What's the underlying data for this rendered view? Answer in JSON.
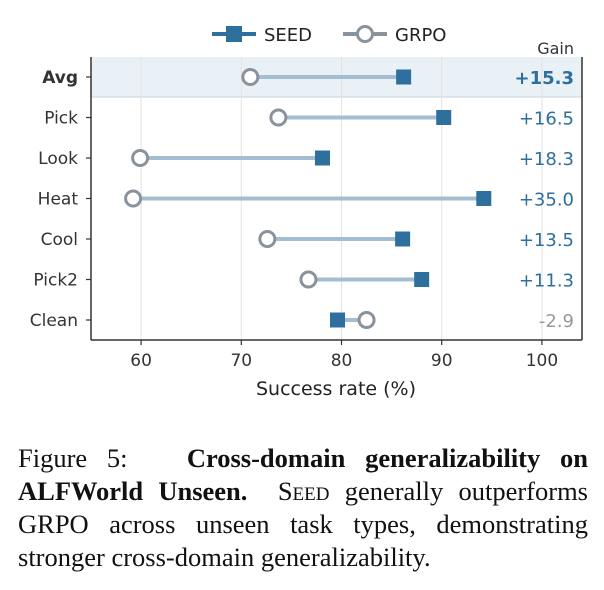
{
  "chart_data": {
    "type": "dumbbell",
    "title": "",
    "xlabel": "Success rate (%)",
    "xlim": [
      55,
      104
    ],
    "xticks": [
      60,
      70,
      80,
      90,
      100
    ],
    "categories": [
      "Avg",
      "Pick",
      "Look",
      "Heat",
      "Cool",
      "Pick2",
      "Clean"
    ],
    "highlight_category": "Avg",
    "series": [
      {
        "name": "SEED",
        "values": [
          86.2,
          90.2,
          78.1,
          94.2,
          86.1,
          88.0,
          79.6
        ],
        "color": "#2e6f9e",
        "marker": "square"
      },
      {
        "name": "GRPO",
        "values": [
          70.9,
          73.7,
          59.9,
          59.2,
          72.6,
          76.7,
          82.5
        ],
        "color": "#8a939c",
        "marker": "hollow-circle"
      }
    ],
    "gain_header": "Gain",
    "gains": [
      "+15.3",
      "+16.5",
      "+18.3",
      "+35.0",
      "+13.5",
      "+11.3",
      "-2.9"
    ],
    "gain_colors": {
      "positive": "#2e6f9e",
      "negative": "#999999"
    },
    "connector_color": "#a3bdd3",
    "grid": true,
    "legend_position": "top-center"
  },
  "caption": {
    "label": "Figure 5:",
    "bold_text": "Cross-domain generalizability on ALFWorld Unseen.",
    "method_name": "Seed",
    "rest_text": "generally outperforms GRPO across unseen task types, demonstrating stronger cross-domain generalizability."
  }
}
